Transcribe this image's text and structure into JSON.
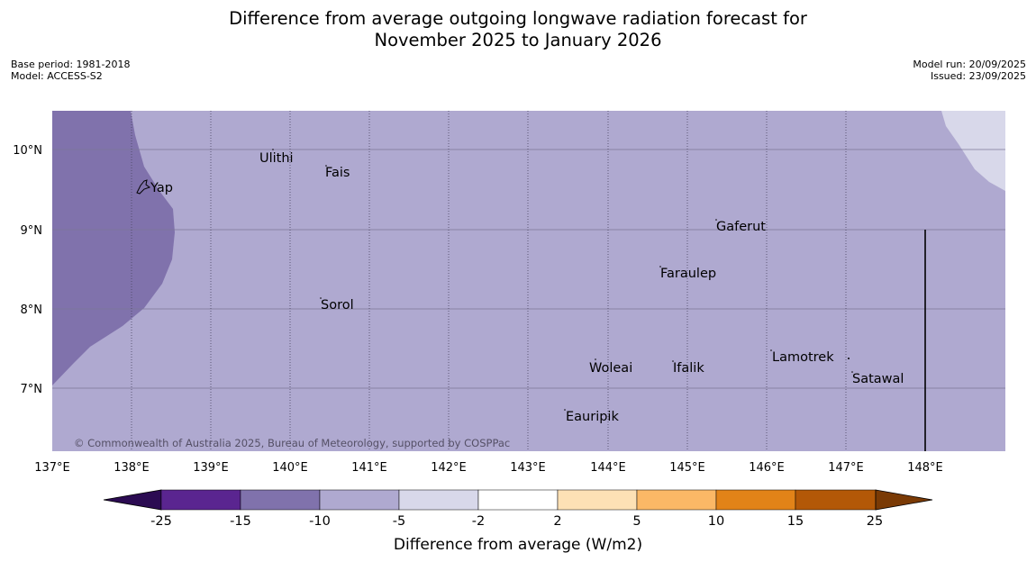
{
  "title": {
    "line1": "Difference from average outgoing longwave radiation forecast for",
    "line2": "November 2025 to January 2026"
  },
  "meta_left": {
    "base_period": "Base period: 1981-2018",
    "model": "Model: ACCESS-S2"
  },
  "meta_right": {
    "model_run": "Model run: 20/09/2025",
    "issued": "Issued: 23/09/2025"
  },
  "map": {
    "lon_ticks": [
      "137°E",
      "138°E",
      "139°E",
      "140°E",
      "141°E",
      "142°E",
      "143°E",
      "144°E",
      "145°E",
      "146°E",
      "147°E",
      "148°E"
    ],
    "lat_ticks": [
      "10°N",
      "9°N",
      "8°N",
      "7°N"
    ],
    "places": {
      "ulithi": "Ulithi",
      "fais": "Fais",
      "yap": "Yap",
      "gaferut": "Gaferut",
      "faraulep": "Faraulep",
      "sorol": "Sorol",
      "lamotrek": "Lamotrek",
      "woleai": "Woleai",
      "ifalik": "Ifalik",
      "satawal": "Satawal",
      "eauripik": "Eauripik"
    },
    "copyright": "© Commonwealth of Australia 2025, Bureau of Meteorology, supported by COSPPac",
    "colors": {
      "lt_minus15": "#4f2a8a",
      "minus15_to_minus10": "#8072ac",
      "minus10_to_minus5": "#afa9d0",
      "minus5_to_minus2": "#d8d8ea"
    }
  },
  "colorbar": {
    "ticks": [
      "-25",
      "-15",
      "-10",
      "-5",
      "-2",
      "2",
      "5",
      "10",
      "15",
      "25"
    ],
    "label": "Difference from average (W/m2)",
    "colors": [
      "#2b0b52",
      "#5a2590",
      "#8072ac",
      "#afa9d0",
      "#d8d8ea",
      "#ffffff",
      "#fde1b5",
      "#fbb866",
      "#e28318",
      "#b35807",
      "#7a3a05"
    ]
  }
}
